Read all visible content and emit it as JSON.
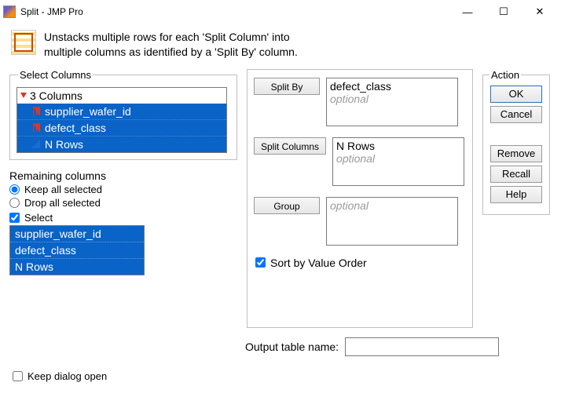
{
  "window": {
    "title": "Split - JMP Pro"
  },
  "description": {
    "line1": "Unstacks multiple rows for each 'Split Column' into",
    "line2": "multiple columns as identified by a 'Split By' column."
  },
  "selectColumns": {
    "legend": "Select Columns",
    "header": "3 Columns",
    "items": [
      {
        "label": "supplier_wafer_id",
        "type": "nominal"
      },
      {
        "label": "defect_class",
        "type": "nominal"
      },
      {
        "label": "N Rows",
        "type": "continuous"
      }
    ]
  },
  "remaining": {
    "heading": "Remaining columns",
    "keepAll": "Keep all selected",
    "dropAll": "Drop all selected",
    "select": "Select",
    "list": [
      "supplier_wafer_id",
      "defect_class",
      "N Rows"
    ]
  },
  "mid": {
    "splitByBtn": "Split By",
    "splitByVal": "defect_class",
    "splitColsBtn": "Split Columns",
    "splitColsVal": "N Rows",
    "groupBtn": "Group",
    "optional": "optional",
    "sortLabel": "Sort by Value Order"
  },
  "output": {
    "label": "Output table name:",
    "value": ""
  },
  "action": {
    "legend": "Action",
    "ok": "OK",
    "cancel": "Cancel",
    "remove": "Remove",
    "recall": "Recall",
    "help": "Help"
  },
  "footer": {
    "keepOpen": "Keep dialog open"
  }
}
